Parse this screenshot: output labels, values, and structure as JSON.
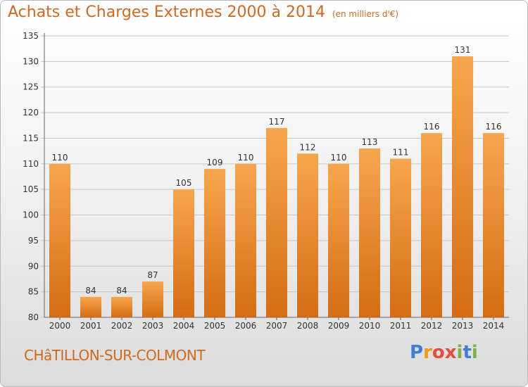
{
  "header": {
    "title": "Achats et Charges Externes 2000 à 2014",
    "unit": "(en milliers d'€)"
  },
  "footer": {
    "town": "CHâTILLON-SUR-COLMONT",
    "logo": "Proxiti",
    "logo_letters": [
      "P",
      "r",
      "o",
      "x",
      "i",
      "t",
      "i"
    ]
  },
  "colors": {
    "accent": "#d2691e",
    "bar_light": "#f7a64d",
    "bar_dark": "#d46c12",
    "grid": "#c8c8c8"
  },
  "chart_data": {
    "type": "bar",
    "categories": [
      "2000",
      "2001",
      "2002",
      "2003",
      "2004",
      "2005",
      "2006",
      "2007",
      "2008",
      "2009",
      "2010",
      "2011",
      "2012",
      "2013",
      "2014"
    ],
    "values": [
      110,
      84,
      84,
      87,
      105,
      109,
      110,
      117,
      112,
      110,
      113,
      111,
      116,
      131,
      116
    ],
    "ylim": [
      80,
      135
    ],
    "yticks": [
      80,
      85,
      90,
      95,
      100,
      105,
      110,
      115,
      120,
      125,
      130,
      135
    ],
    "grid": true
  }
}
